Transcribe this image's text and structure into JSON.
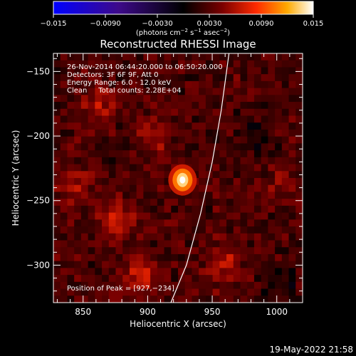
{
  "chart_data": {
    "type": "heatmap",
    "title": "Reconstructed RHESSI Image",
    "xlabel": "Heliocentric X (arcsec)",
    "ylabel": "Heliocentric Y (arcsec)",
    "xlim": [
      827,
      1020
    ],
    "ylim": [
      -329,
      -136
    ],
    "x_ticks": [
      850,
      900,
      950,
      1000
    ],
    "x_tick_labels": [
      "850",
      "900",
      "950",
      "1000"
    ],
    "y_ticks": [
      -150,
      -200,
      -250,
      -300
    ],
    "y_tick_labels": [
      "−150",
      "−200",
      "−250",
      "−300"
    ],
    "colorbar": {
      "range": [
        -0.015,
        0.015
      ],
      "ticks": [
        -0.015,
        -0.009,
        -0.003,
        0.003,
        0.009,
        0.015
      ],
      "tick_labels": [
        "−0.015",
        "−0.0090",
        "−0.0030",
        "0.0030",
        "0.0090",
        "0.015"
      ],
      "label_main": "(photons cm",
      "label_sup1": "−2",
      "label_mid1": " s",
      "label_sup2": "−1",
      "label_mid2": " asec",
      "label_sup3": "−2",
      "label_end": ")"
    },
    "annotations": [
      "26-Nov-2014 06:44:20.000 to 06:50:20.000",
      "Detectors: 3F 6F 9F, Att 0",
      "Energy Range: 6.0 - 12.0 keV",
      "Clean     Total counts: 2.28E+04"
    ],
    "peak_label": "Position of Peak = [927,−234]",
    "peak": {
      "x": 927,
      "y": -234,
      "value": 0.015
    },
    "limb": [
      [
        918,
        -329
      ],
      [
        930,
        -300
      ],
      [
        941,
        -260
      ],
      [
        950,
        -220
      ],
      [
        957,
        -180
      ],
      [
        963,
        -136
      ]
    ],
    "features": [
      {
        "x": 876,
        "y": -265,
        "value": 0.006
      },
      {
        "x": 895,
        "y": -310,
        "value": 0.0055
      },
      {
        "x": 862,
        "y": -175,
        "value": 0.004
      },
      {
        "x": 845,
        "y": -240,
        "value": 0.0035
      },
      {
        "x": 960,
        "y": -300,
        "value": 0.004
      },
      {
        "x": 905,
        "y": -200,
        "value": 0.003
      },
      {
        "x": 1005,
        "y": -240,
        "value": 0.002
      },
      {
        "x": 985,
        "y": -200,
        "value": -0.0025
      },
      {
        "x": 1003,
        "y": -315,
        "value": -0.003
      }
    ]
  },
  "footer": {
    "timestamp": "19-May-2022 21:58"
  }
}
